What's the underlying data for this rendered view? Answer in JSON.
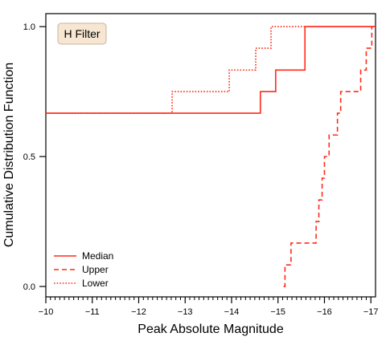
{
  "chart_data": {
    "type": "step",
    "xlabel": "Peak Absolute Magnitude",
    "ylabel": "Cumulative Distribution Function",
    "xlim": [
      -10,
      -17.1
    ],
    "x_axis_reversed": true,
    "ylim": [
      -0.04,
      1.05
    ],
    "xticks": [
      -10,
      -11,
      -12,
      -13,
      -14,
      -15,
      -16,
      -17
    ],
    "xtick_labels": [
      "−10",
      "−11",
      "−12",
      "−13",
      "−14",
      "−15",
      "−16",
      "−17"
    ],
    "yticks": [
      0.0,
      0.5,
      1.0
    ],
    "ytick_labels": [
      "0.0",
      "0.5",
      "1.0"
    ],
    "annotation": "H Filter",
    "legend_position": "lower-left",
    "grid": false,
    "color": "#ff2a1a",
    "series": [
      {
        "name": "Median",
        "linestyle": "solid",
        "steps": [
          {
            "x": -10.0,
            "y": 0.667
          },
          {
            "x": -14.62,
            "y": 0.75
          },
          {
            "x": -14.95,
            "y": 0.833
          },
          {
            "x": -15.58,
            "y": 1.0
          },
          {
            "x": -17.1,
            "y": 1.0
          }
        ]
      },
      {
        "name": "Upper",
        "linestyle": "dashed",
        "steps": [
          {
            "x": -15.12,
            "y": 0.0
          },
          {
            "x": -15.15,
            "y": 0.083
          },
          {
            "x": -15.28,
            "y": 0.167
          },
          {
            "x": -15.82,
            "y": 0.25
          },
          {
            "x": -15.88,
            "y": 0.333
          },
          {
            "x": -15.95,
            "y": 0.417
          },
          {
            "x": -16.0,
            "y": 0.5
          },
          {
            "x": -16.1,
            "y": 0.583
          },
          {
            "x": -16.28,
            "y": 0.667
          },
          {
            "x": -16.35,
            "y": 0.75
          },
          {
            "x": -16.78,
            "y": 0.833
          },
          {
            "x": -16.9,
            "y": 0.917
          },
          {
            "x": -17.02,
            "y": 1.0
          },
          {
            "x": -17.1,
            "y": 1.0
          }
        ]
      },
      {
        "name": "Lower",
        "linestyle": "dotted",
        "steps": [
          {
            "x": -10.0,
            "y": 0.667
          },
          {
            "x": -12.72,
            "y": 0.75
          },
          {
            "x": -13.95,
            "y": 0.833
          },
          {
            "x": -14.52,
            "y": 0.917
          },
          {
            "x": -14.85,
            "y": 1.0
          },
          {
            "x": -17.1,
            "y": 1.0
          }
        ]
      }
    ]
  }
}
